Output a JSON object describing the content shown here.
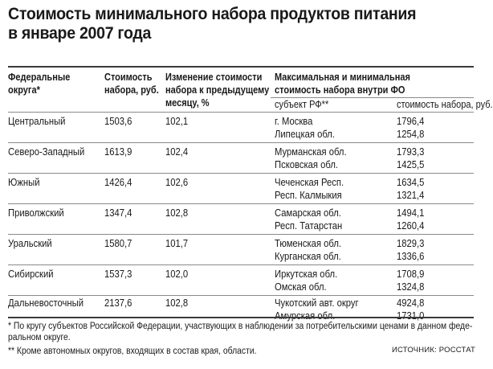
{
  "title": {
    "line1": "Стоимость минимального набора продуктов питания",
    "line2": "в январе 2007 года"
  },
  "headers": {
    "district_l1": "Федеральные",
    "district_l2": "округа*",
    "cost_l1": "Стоимость",
    "cost_l2": "набора, руб.",
    "change_l1": "Изменение стоимости",
    "change_l2": "набора к предыдущему",
    "change_l3": "месяцу, %",
    "range_l1": "Максимальная и минимальная",
    "range_l2": "стоимость набора внутри ФО",
    "subject": "субъект РФ**",
    "subject_cost": "стоимость набора, руб."
  },
  "rows": [
    {
      "district": "Центральный",
      "cost": "1503,6",
      "change": "102,1",
      "max_subject": "г. Москва",
      "max_value": "1796,4",
      "min_subject": "Липецкая обл.",
      "min_value": "1254,8"
    },
    {
      "district": "Северо-Западный",
      "cost": "1613,9",
      "change": "102,4",
      "max_subject": "Мурманская обл.",
      "max_value": "1793,3",
      "min_subject": "Псковская обл.",
      "min_value": "1425,5"
    },
    {
      "district": "Южный",
      "cost": "1426,4",
      "change": "102,6",
      "max_subject": "Чеченская Респ.",
      "max_value": "1634,5",
      "min_subject": "Респ. Калмыкия",
      "min_value": "1321,4"
    },
    {
      "district": "Приволжский",
      "cost": "1347,4",
      "change": "102,8",
      "max_subject": "Самарская обл.",
      "max_value": "1494,1",
      "min_subject": "Респ. Татарстан",
      "min_value": "1260,4"
    },
    {
      "district": "Уральский",
      "cost": "1580,7",
      "change": "101,7",
      "max_subject": "Тюменская обл.",
      "max_value": "1829,3",
      "min_subject": "Курганская обл.",
      "min_value": "1336,6"
    },
    {
      "district": "Сибирский",
      "cost": "1537,3",
      "change": "102,0",
      "max_subject": "Иркутская обл.",
      "max_value": "1708,9",
      "min_subject": "Омская обл.",
      "min_value": "1324,8"
    },
    {
      "district": "Дальневосточный",
      "cost": "2137,6",
      "change": "102,8",
      "max_subject": "Чукотский авт. округ",
      "max_value": "4924,8",
      "min_subject": "Амурская обл.",
      "min_value": "1731,0"
    }
  ],
  "footnotes": {
    "note1_l1": "* По кругу субъектов Российской Федерации, участвующих в наблюдении за потребительскими ценами в данном феде-",
    "note1_l2": "ральном округе.",
    "note2": "** Кроме автономных округов, входящих в состав края, области."
  },
  "source": "ИСТОЧНИК: РОССТАТ"
}
